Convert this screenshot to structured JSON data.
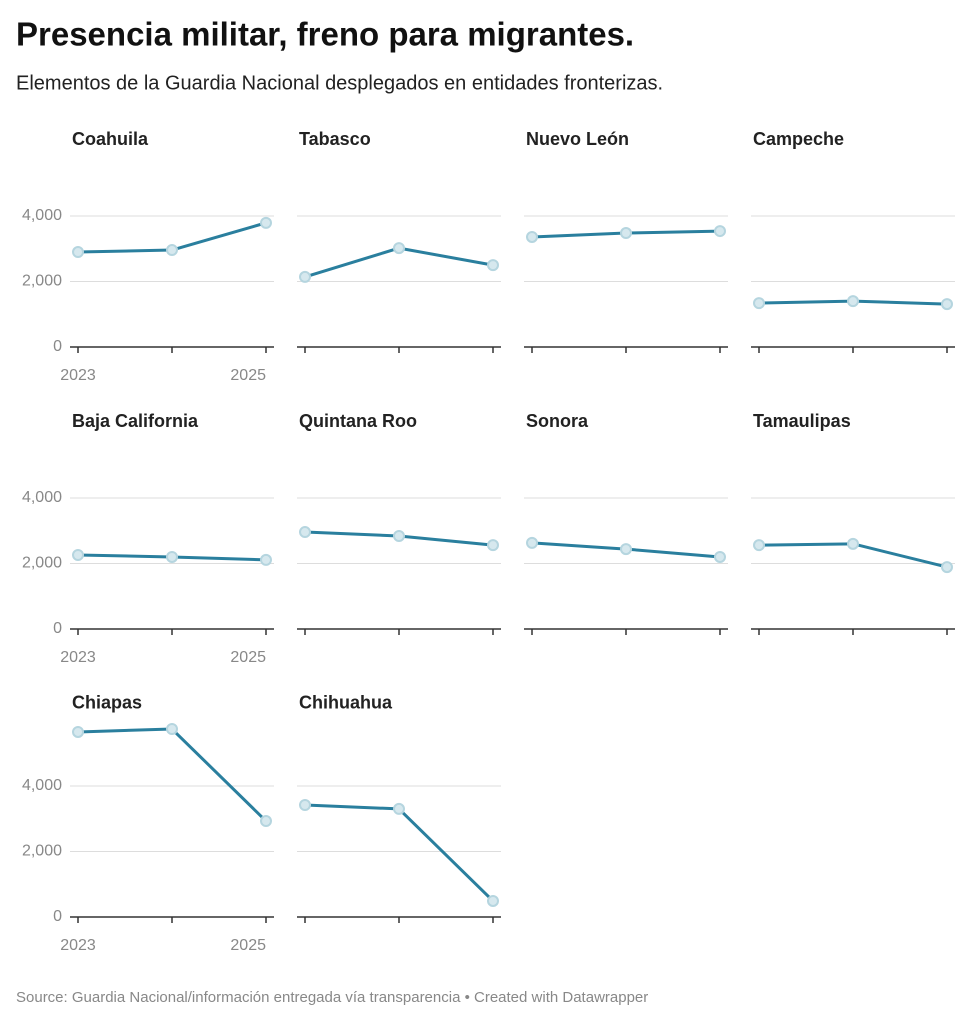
{
  "title": "Presencia militar, freno para migrantes.",
  "subtitle": "Elementos de la Guardia Nacional desplegados en entidades fronterizas.",
  "source": "Source: Guardia Nacional/información entregada vía transparencia • Created with Datawrapper",
  "chart_data": [
    {
      "type": "line",
      "title": "Coahuila",
      "categories": [
        "2023",
        null,
        "2025"
      ],
      "series": [
        {
          "color": "#2a7f9e",
          "values": [
            2900,
            2960,
            3790
          ]
        }
      ],
      "ylim": [
        0,
        4000
      ],
      "yticks": [
        0,
        {
          "value": 2000,
          "label": "2,000"
        },
        {
          "value": 4000,
          "label": "4,000"
        }
      ],
      "grid": true
    },
    {
      "type": "line",
      "title": "Tabasco",
      "categories": [
        null,
        null,
        null
      ],
      "series": [
        {
          "color": "#2a7f9e",
          "values": [
            2140,
            3020,
            2500
          ]
        }
      ],
      "ylim": [
        0,
        4000
      ],
      "yticks": [
        0,
        2000,
        4000
      ],
      "grid": true
    },
    {
      "type": "line",
      "title": "Nuevo León",
      "categories": [
        null,
        null,
        null
      ],
      "series": [
        {
          "color": "#2a7f9e",
          "values": [
            3360,
            3480,
            3540
          ]
        }
      ],
      "ylim": [
        0,
        4000
      ],
      "yticks": [
        0,
        2000,
        4000
      ],
      "grid": true
    },
    {
      "type": "line",
      "title": "Campeche",
      "categories": [
        null,
        null,
        null
      ],
      "series": [
        {
          "color": "#2a7f9e",
          "values": [
            1340,
            1400,
            1310
          ]
        }
      ],
      "ylim": [
        0,
        4000
      ],
      "yticks": [
        0,
        2000,
        4000
      ],
      "grid": true
    },
    {
      "type": "line",
      "title": "Baja California",
      "categories": [
        "2023",
        null,
        "2025"
      ],
      "series": [
        {
          "color": "#2a7f9e",
          "values": [
            2260,
            2200,
            2110
          ]
        }
      ],
      "ylim": [
        0,
        4000
      ],
      "yticks": [
        0,
        {
          "value": 2000,
          "label": "2,000"
        },
        {
          "value": 4000,
          "label": "4,000"
        }
      ],
      "grid": true
    },
    {
      "type": "line",
      "title": "Quintana Roo",
      "categories": [
        null,
        null,
        null
      ],
      "series": [
        {
          "color": "#2a7f9e",
          "values": [
            2960,
            2840,
            2560
          ]
        }
      ],
      "ylim": [
        0,
        4000
      ],
      "yticks": [
        0,
        2000,
        4000
      ],
      "grid": true
    },
    {
      "type": "line",
      "title": "Sonora",
      "categories": [
        null,
        null,
        null
      ],
      "series": [
        {
          "color": "#2a7f9e",
          "values": [
            2630,
            2440,
            2200
          ]
        }
      ],
      "ylim": [
        0,
        4000
      ],
      "yticks": [
        0,
        2000,
        4000
      ],
      "grid": true
    },
    {
      "type": "line",
      "title": "Tamaulipas",
      "categories": [
        null,
        null,
        null
      ],
      "series": [
        {
          "color": "#2a7f9e",
          "values": [
            2560,
            2600,
            1890
          ]
        }
      ],
      "ylim": [
        0,
        4000
      ],
      "yticks": [
        0,
        2000,
        4000
      ],
      "grid": true
    },
    {
      "type": "line",
      "title": "Chiapas",
      "categories": [
        "2023",
        null,
        "2025"
      ],
      "series": [
        {
          "color": "#2a7f9e",
          "values": [
            5650,
            5740,
            2930
          ]
        }
      ],
      "ylim": [
        0,
        6000
      ],
      "yticks": [
        0,
        {
          "value": 2000,
          "label": "2,000"
        },
        {
          "value": 4000,
          "label": "4,000"
        }
      ],
      "grid": true
    },
    {
      "type": "line",
      "title": "Chihuahua",
      "categories": [
        null,
        null,
        null
      ],
      "series": [
        {
          "color": "#2a7f9e",
          "values": [
            3420,
            3300,
            490
          ]
        }
      ],
      "ylim": [
        0,
        6000
      ],
      "yticks": [
        0,
        2000,
        4000
      ],
      "grid": true
    }
  ]
}
